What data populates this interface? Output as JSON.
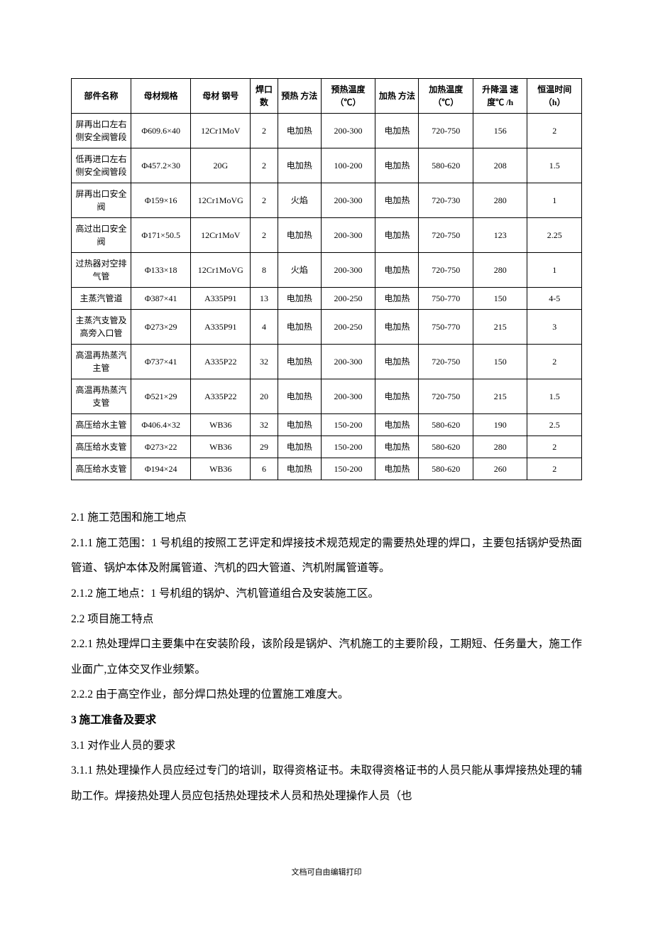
{
  "table": {
    "headers": [
      "部件名称",
      "母材规格",
      "母材\n钢号",
      "焊口数",
      "预热\n方法",
      "预热温度（℃）",
      "加热\n方法",
      "加热温度（℃）",
      "升降温\n速度℃\n/h",
      "恒温时间（h）"
    ],
    "rows": [
      [
        "屏再出口左右侧安全阀管段",
        "Φ609.6×40",
        "12Cr1MoV",
        "2",
        "电加热",
        "200-300",
        "电加热",
        "720-750",
        "156",
        "2"
      ],
      [
        "低再进口左右侧安全阀管段",
        "Φ457.2×30",
        "20G",
        "2",
        "电加热",
        "100-200",
        "电加热",
        "580-620",
        "208",
        "1.5"
      ],
      [
        "屏再出口安全阀",
        "Φ159×16",
        "12Cr1MoVG",
        "2",
        "火焰",
        "200-300",
        "电加热",
        "720-730",
        "280",
        "1"
      ],
      [
        "高过出口安全阀",
        "Φ171×50.5",
        "12Cr1MoV",
        "2",
        "电加热",
        "200-300",
        "电加热",
        "720-750",
        "123",
        "2.25"
      ],
      [
        "过热器对空排气管",
        "Φ133×18",
        "12Cr1MoVG",
        "8",
        "火焰",
        "200-300",
        "电加热",
        "720-750",
        "280",
        "1"
      ],
      [
        "主蒸汽管道",
        "Φ387×41",
        "A335P91",
        "13",
        "电加热",
        "200-250",
        "电加热",
        "750-770",
        "150",
        "4-5"
      ],
      [
        "主蒸汽支管及高旁入口管",
        "Φ273×29",
        "A335P91",
        "4",
        "电加热",
        "200-250",
        "电加热",
        "750-770",
        "215",
        "3"
      ],
      [
        "高温再热蒸汽主管",
        "Φ737×41",
        "A335P22",
        "32",
        "电加热",
        "200-300",
        "电加热",
        "720-750",
        "150",
        "2"
      ],
      [
        "高温再热蒸汽支管",
        "Φ521×29",
        "A335P22",
        "20",
        "电加热",
        "200-300",
        "电加热",
        "720-750",
        "215",
        "1.5"
      ],
      [
        "高压给水主管",
        "Φ406.4×32",
        "WB36",
        "32",
        "电加热",
        "150-200",
        "电加热",
        "580-620",
        "190",
        "2.5"
      ],
      [
        "高压给水支管",
        "Φ273×22",
        "WB36",
        "29",
        "电加热",
        "150-200",
        "电加热",
        "580-620",
        "280",
        "2"
      ],
      [
        "高压给水支管",
        "Φ194×24",
        "WB36",
        "6",
        "电加热",
        "150-200",
        "电加热",
        "580-620",
        "260",
        "2"
      ]
    ]
  },
  "paragraphs": [
    {
      "text": "2.1 施工范围和施工地点",
      "bold": false
    },
    {
      "text": "2.1.1 施工范围：1 号机组的按照工艺评定和焊接技术规范规定的需要热处理的焊口，主要包括锅炉受热面管道、锅炉本体及附属管道、汽机的四大管道、汽机附属管道等。",
      "bold": false
    },
    {
      "text": "2.1.2 施工地点：1 号机组的锅炉、汽机管道组合及安装施工区。",
      "bold": false
    },
    {
      "text": "2.2 项目施工特点",
      "bold": false
    },
    {
      "text": "2.2.1 热处理焊口主要集中在安装阶段，该阶段是锅炉、汽机施工的主要阶段，工期短、任务量大，施工作业面广,立体交叉作业频繁。",
      "bold": false
    },
    {
      "text": "2.2.2 由于高空作业，部分焊口热处理的位置施工难度大。",
      "bold": false
    },
    {
      "text": "3 施工准备及要求",
      "bold": true
    },
    {
      "text": "3.1 对作业人员的要求",
      "bold": false
    },
    {
      "text": "3.1.1 热处理操作人员应经过专门的培训，取得资格证书。未取得资格证书的人员只能从事焊接热处理的辅助工作。焊接热处理人员应包括热处理技术人员和热处理操作人员（也",
      "bold": false
    }
  ],
  "footer": "文档可自由编辑打印"
}
